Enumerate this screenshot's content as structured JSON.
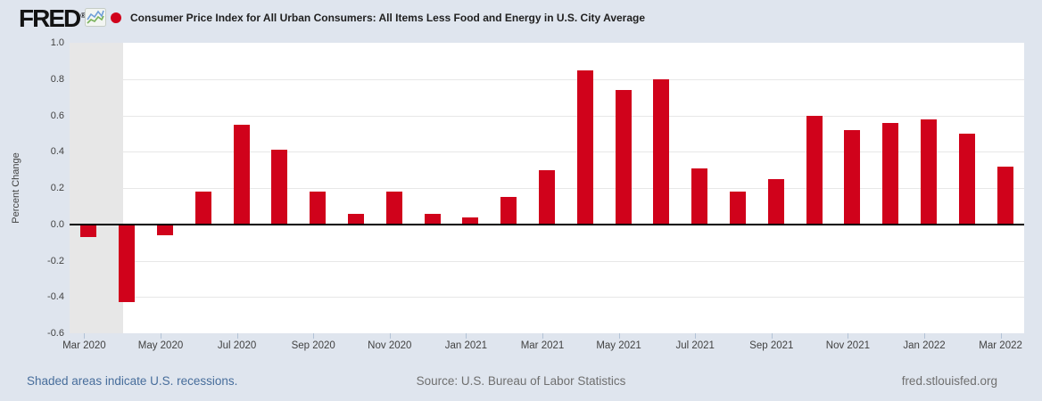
{
  "header": {
    "logo": "FRED",
    "registered_mark": "®",
    "legend_dot_color": "#d0021b",
    "series_title": "Consumer Price Index for All Urban Consumers: All Items Less Food and Energy in U.S. City Average"
  },
  "chart_data": {
    "type": "bar",
    "title": "Consumer Price Index for All Urban Consumers: All Items Less Food and Energy in U.S. City Average",
    "xlabel": "",
    "ylabel": "Percent Change",
    "ylim": [
      -0.6,
      1.0
    ],
    "ytick_interval": 0.2,
    "grid": true,
    "bar_color": "#d0021b",
    "recession_shading": {
      "color": "#e7e7e7",
      "covers": [
        "Mar 2020",
        "Apr 2020"
      ]
    },
    "categories": [
      "Mar 2020",
      "Apr 2020",
      "May 2020",
      "Jun 2020",
      "Jul 2020",
      "Aug 2020",
      "Sep 2020",
      "Oct 2020",
      "Nov 2020",
      "Dec 2020",
      "Jan 2021",
      "Feb 2021",
      "Mar 2021",
      "Apr 2021",
      "May 2021",
      "Jun 2021",
      "Jul 2021",
      "Aug 2021",
      "Sep 2021",
      "Oct 2021",
      "Nov 2021",
      "Dec 2021",
      "Jan 2022",
      "Feb 2022",
      "Mar 2022"
    ],
    "values": [
      -0.07,
      -0.43,
      -0.06,
      0.18,
      0.55,
      0.41,
      0.18,
      0.06,
      0.18,
      0.06,
      0.04,
      0.15,
      0.3,
      0.85,
      0.74,
      0.8,
      0.31,
      0.18,
      0.25,
      0.6,
      0.52,
      0.56,
      0.58,
      0.5,
      0.32
    ],
    "xtick_labels": [
      "Mar 2020",
      "May 2020",
      "Jul 2020",
      "Sep 2020",
      "Nov 2020",
      "Jan 2021",
      "Mar 2021",
      "May 2021",
      "Jul 2021",
      "Sep 2021",
      "Nov 2021",
      "Jan 2022",
      "Mar 2022"
    ]
  },
  "footer": {
    "recession_note": "Shaded areas indicate U.S. recessions.",
    "source": "Source: U.S. Bureau of Labor Statistics",
    "site": "fred.stlouisfed.org"
  }
}
